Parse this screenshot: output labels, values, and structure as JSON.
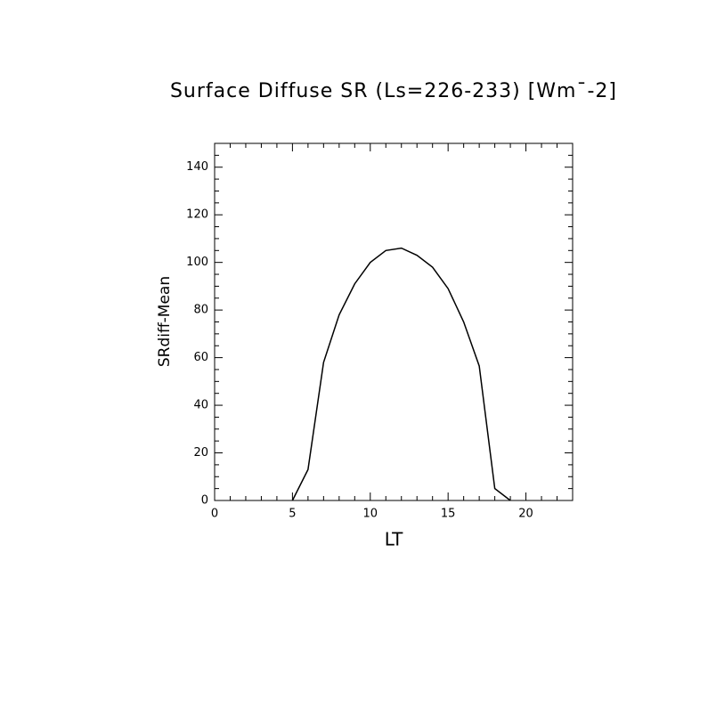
{
  "chart_data": {
    "type": "line",
    "title": "Surface Diffuse SR (Ls=226-233) [Wm¯-2]",
    "x_label": "LT",
    "y_label": "SRdiff-Mean",
    "x": [
      5,
      6,
      7,
      8,
      9,
      10,
      11,
      12,
      13,
      14,
      15,
      16,
      17,
      18,
      19
    ],
    "values": [
      0,
      13,
      58,
      78,
      91,
      100,
      105,
      106,
      103,
      98,
      89,
      75,
      56.5,
      5,
      0
    ],
    "color": "#000000",
    "xlim": [
      0,
      23
    ],
    "ylim": [
      0,
      150
    ],
    "xticks": [
      0,
      5,
      10,
      15,
      20
    ],
    "yticks": [
      0,
      20,
      40,
      60,
      80,
      100,
      120,
      140
    ],
    "xminorticks": [
      1,
      2,
      3,
      4,
      6,
      7,
      8,
      9,
      11,
      12,
      13,
      14,
      16,
      17,
      18,
      19,
      21,
      22
    ],
    "yminorticks": [
      5,
      10,
      15,
      25,
      30,
      35,
      45,
      50,
      55,
      65,
      70,
      75,
      85,
      90,
      95,
      105,
      110,
      115,
      125,
      130,
      135,
      145
    ]
  }
}
